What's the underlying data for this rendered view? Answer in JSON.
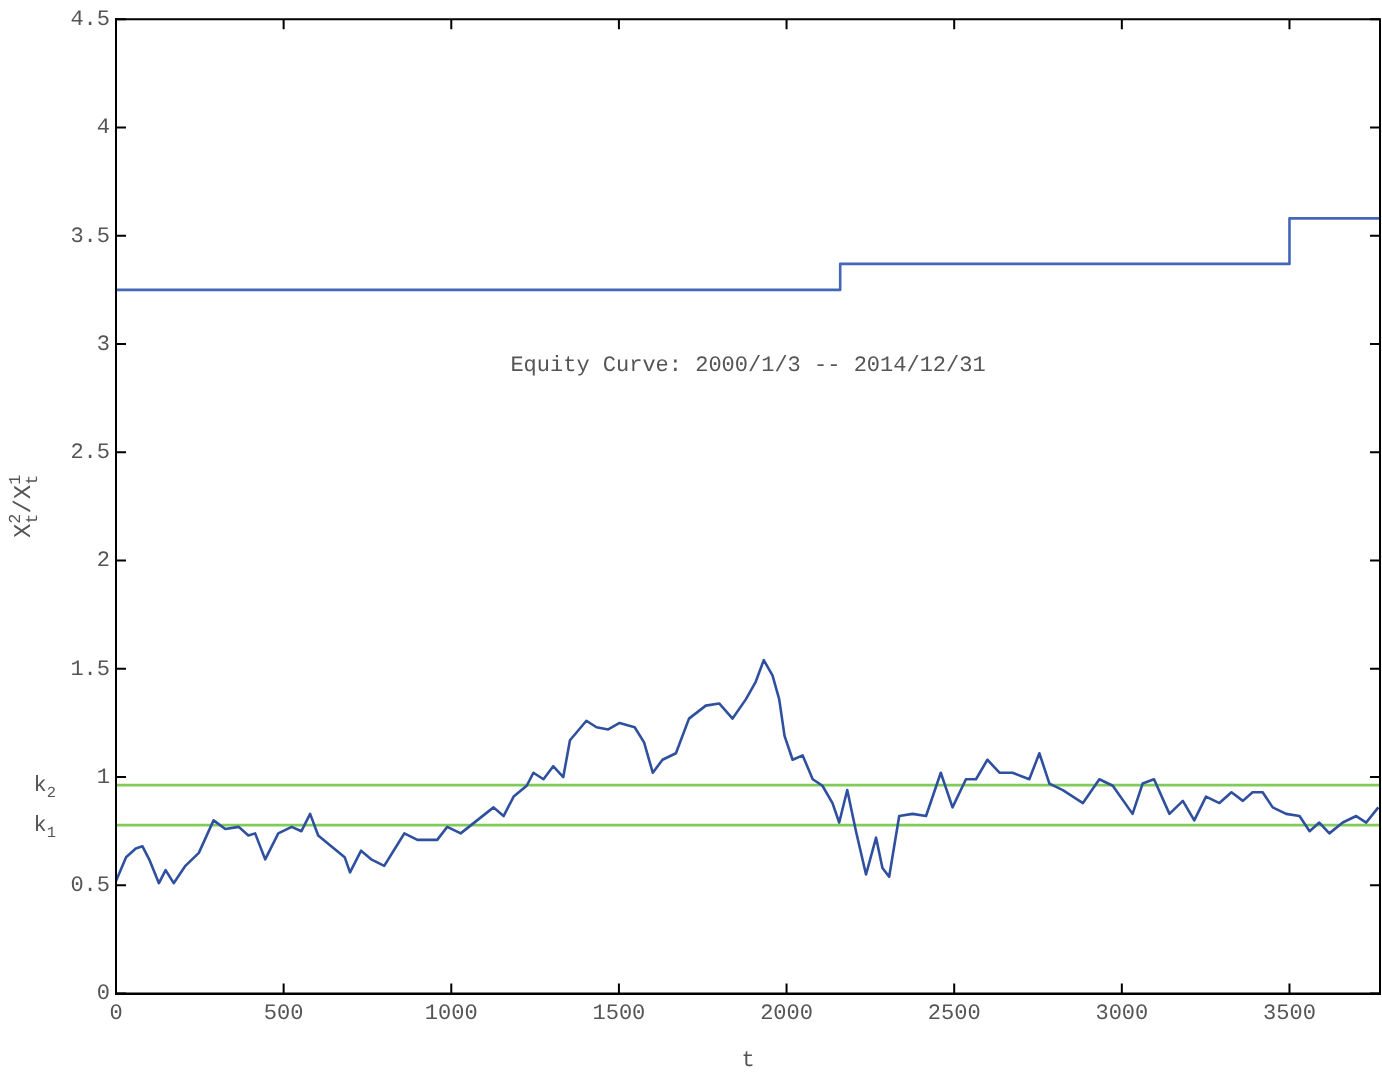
{
  "chart_data": {
    "type": "line",
    "xlabel": "t",
    "ylabel": "X$_{t}$$^{2}$/X$_{t}$$^{1}$",
    "annotations": [
      "Equity Curve: 2000/1/3 -- 2014/12/31"
    ],
    "xlim": [
      0,
      3770
    ],
    "ylim": [
      0,
      4.5
    ],
    "xticks": [
      0,
      500,
      1000,
      1500,
      2000,
      2500,
      3000,
      3500
    ],
    "yticks": [
      0,
      0.5,
      1,
      1.5,
      2,
      2.5,
      3,
      3.5,
      4,
      4.5
    ],
    "series": [
      {
        "type": "line",
        "color": "#2f4f9f",
        "x": [
          0,
          30,
          59,
          79,
          99,
          128,
          148,
          172,
          207,
          247,
          291,
          326,
          366,
          395,
          415,
          445,
          484,
          524,
          553,
          579,
          603,
          642,
          682,
          698,
          731,
          761,
          800,
          840,
          860,
          899,
          958,
          988,
          1028,
          1077,
          1126,
          1156,
          1186,
          1225,
          1245,
          1275,
          1304,
          1334,
          1354,
          1403,
          1433,
          1468,
          1502,
          1547,
          1575,
          1601,
          1630,
          1670,
          1709,
          1759,
          1799,
          1839,
          1879,
          1908,
          1932,
          1958,
          1978,
          1994,
          2018,
          2048,
          2078,
          2107,
          2137,
          2157,
          2181,
          2207,
          2237,
          2267,
          2286,
          2306,
          2336,
          2376,
          2416,
          2460,
          2495,
          2535,
          2565,
          2599,
          2635,
          2674,
          2724,
          2754,
          2784,
          2824,
          2884,
          2933,
          2973,
          3032,
          3062,
          3096,
          3142,
          3182,
          3216,
          3251,
          3291,
          3327,
          3361,
          3390,
          3420,
          3450,
          3490,
          3530,
          3560,
          3589,
          3619,
          3659,
          3699,
          3729,
          3765
        ],
        "values": [
          0.52,
          0.63,
          0.67,
          0.68,
          0.62,
          0.51,
          0.57,
          0.51,
          0.59,
          0.65,
          0.8,
          0.76,
          0.77,
          0.73,
          0.74,
          0.62,
          0.74,
          0.77,
          0.75,
          0.83,
          0.73,
          0.68,
          0.63,
          0.56,
          0.66,
          0.62,
          0.59,
          0.69,
          0.74,
          0.71,
          0.71,
          0.77,
          0.74,
          0.8,
          0.86,
          0.82,
          0.91,
          0.96,
          1.02,
          0.99,
          1.05,
          1,
          1.17,
          1.26,
          1.23,
          1.22,
          1.25,
          1.23,
          1.16,
          1.02,
          1.08,
          1.11,
          1.27,
          1.33,
          1.34,
          1.27,
          1.36,
          1.44,
          1.54,
          1.47,
          1.36,
          1.19,
          1.08,
          1.1,
          0.99,
          0.96,
          0.88,
          0.79,
          0.94,
          0.75,
          0.55,
          0.72,
          0.58,
          0.54,
          0.82,
          0.83,
          0.82,
          1.02,
          0.86,
          0.99,
          0.99,
          1.08,
          1.02,
          1.02,
          0.99,
          1.11,
          0.97,
          0.94,
          0.88,
          0.99,
          0.96,
          0.83,
          0.97,
          0.99,
          0.83,
          0.89,
          0.8,
          0.91,
          0.88,
          0.93,
          0.89,
          0.93,
          0.93,
          0.86,
          0.83,
          0.82,
          0.75,
          0.79,
          0.74,
          0.79,
          0.82,
          0.79,
          0.86
        ]
      },
      {
        "type": "step",
        "color": "#4466b8",
        "x": [
          0,
          2160,
          3500,
          3770
        ],
        "values": [
          3.25,
          3.37,
          3.58,
          3.58
        ]
      }
    ],
    "ref_lines": [
      {
        "axis": "y",
        "value": 0.963,
        "label": "k$_{2}$",
        "color": "#80cc5a"
      },
      {
        "axis": "y",
        "value": 0.778,
        "label": "k$_{1}$",
        "color": "#80cc5a"
      }
    ]
  }
}
